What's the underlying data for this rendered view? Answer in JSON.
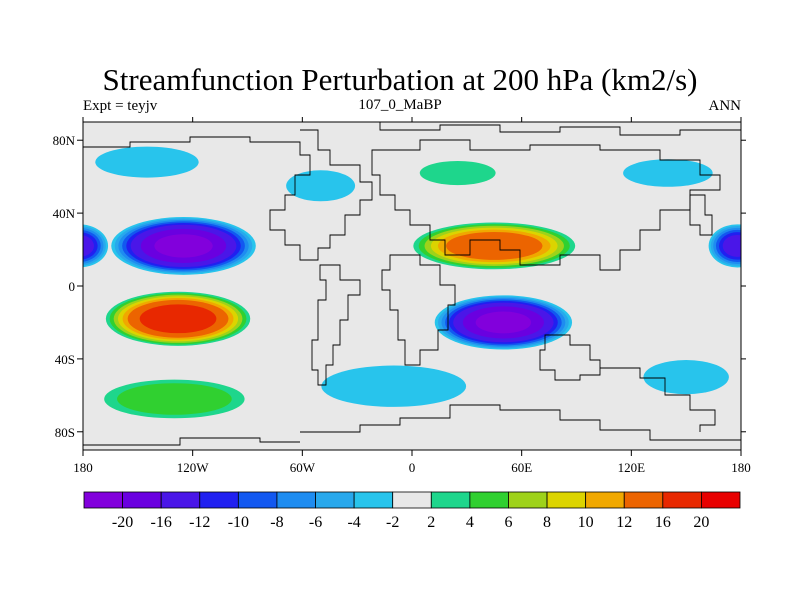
{
  "title": "Streamfunction Perturbation at 200 hPa (km2/s)",
  "left_subtitle": "Expt = teyjv",
  "center_subtitle": "107_0_MaBP",
  "right_subtitle": "ANN",
  "map": {
    "projection": "cylindrical equidistant",
    "lon_range": [
      -180,
      180
    ],
    "lat_range": [
      -90,
      90
    ],
    "x_ticks": [
      {
        "lon": -180,
        "label": "180"
      },
      {
        "lon": -120,
        "label": "120W"
      },
      {
        "lon": -60,
        "label": "60W"
      },
      {
        "lon": 0,
        "label": "0"
      },
      {
        "lon": 60,
        "label": "60E"
      },
      {
        "lon": 120,
        "label": "120E"
      },
      {
        "lon": 180,
        "label": "180"
      }
    ],
    "y_ticks": [
      {
        "lat": 80,
        "label": "80N"
      },
      {
        "lat": 40,
        "label": "40N"
      },
      {
        "lat": 0,
        "label": "0"
      },
      {
        "lat": -40,
        "label": "40S"
      },
      {
        "lat": -80,
        "label": "80S"
      }
    ]
  },
  "colorbar": {
    "levels": [
      -20,
      -16,
      -12,
      -10,
      -8,
      -6,
      -4,
      -2,
      2,
      4,
      6,
      8,
      10,
      12,
      16,
      20
    ],
    "labels": [
      "-20",
      "-16",
      "-12",
      "-10",
      "-8",
      "-6",
      "-4",
      "-2",
      "2",
      "4",
      "6",
      "8",
      "10",
      "12",
      "16",
      "20"
    ],
    "colors": [
      "#8200dc",
      "#6a00e0",
      "#4a16e8",
      "#2020f0",
      "#1258f0",
      "#1e8cf0",
      "#28a8ec",
      "#28c4ec",
      "#e8e8e8",
      "#1ed68c",
      "#30d030",
      "#9ed21a",
      "#dcd400",
      "#f0a800",
      "#ec6400",
      "#e82800",
      "#e80000"
    ]
  },
  "field_features": [
    {
      "lon": -125,
      "lat": 22,
      "value": -21,
      "rx": 40,
      "ry": 16
    },
    {
      "lon": 178,
      "lat": 22,
      "value": -13,
      "rx": 16,
      "ry": 12
    },
    {
      "lon": 50,
      "lat": -20,
      "value": -21,
      "rx": 38,
      "ry": 15
    },
    {
      "lon": -128,
      "lat": -18,
      "value": 19,
      "rx": 40,
      "ry": 15
    },
    {
      "lon": 45,
      "lat": 22,
      "value": 15,
      "rx": 45,
      "ry": 13
    },
    {
      "lon": -130,
      "lat": -62,
      "value": 5.5,
      "rx": 40,
      "ry": 11
    },
    {
      "lon": -10,
      "lat": -55,
      "value": -3.5,
      "rx": 42,
      "ry": 12
    },
    {
      "lon": -145,
      "lat": 68,
      "value": -3.5,
      "rx": 30,
      "ry": 9
    },
    {
      "lon": -50,
      "lat": 55,
      "value": -3.5,
      "rx": 20,
      "ry": 9
    },
    {
      "lon": 25,
      "lat": 62,
      "value": 3.5,
      "rx": 22,
      "ry": 7
    },
    {
      "lon": 140,
      "lat": 62,
      "value": -3.5,
      "rx": 26,
      "ry": 8
    },
    {
      "lon": 150,
      "lat": -50,
      "value": -3,
      "rx": 25,
      "ry": 10
    }
  ]
}
